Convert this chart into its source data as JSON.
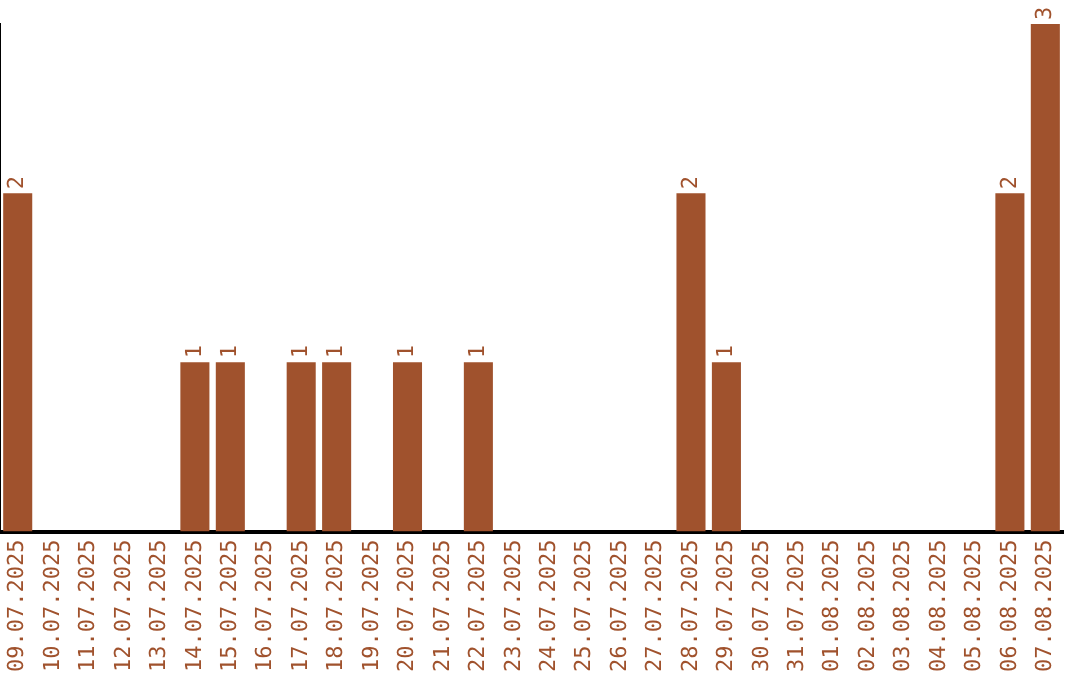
{
  "chart_data": {
    "type": "bar",
    "categories": [
      "09.07.2025",
      "10.07.2025",
      "11.07.2025",
      "12.07.2025",
      "13.07.2025",
      "14.07.2025",
      "15.07.2025",
      "16.07.2025",
      "17.07.2025",
      "18.07.2025",
      "19.07.2025",
      "20.07.2025",
      "21.07.2025",
      "22.07.2025",
      "23.07.2025",
      "24.07.2025",
      "25.07.2025",
      "26.07.2025",
      "27.07.2025",
      "28.07.2025",
      "29.07.2025",
      "30.07.2025",
      "31.07.2025",
      "01.08.2025",
      "02.08.2025",
      "03.08.2025",
      "04.08.2025",
      "05.08.2025",
      "06.08.2025",
      "07.08.2025"
    ],
    "values": [
      2,
      0,
      0,
      0,
      0,
      1,
      1,
      0,
      1,
      1,
      0,
      1,
      0,
      1,
      0,
      0,
      0,
      0,
      0,
      2,
      1,
      0,
      0,
      0,
      0,
      0,
      0,
      0,
      2,
      3
    ],
    "value_labels": [
      "2",
      null,
      null,
      null,
      null,
      "1",
      "1",
      null,
      "1",
      "1",
      null,
      "1",
      null,
      "1",
      null,
      null,
      null,
      null,
      null,
      "2",
      "1",
      null,
      null,
      null,
      null,
      null,
      null,
      null,
      "2",
      "3"
    ],
    "color": "#a0522d",
    "grid": false,
    "legend": false
  }
}
